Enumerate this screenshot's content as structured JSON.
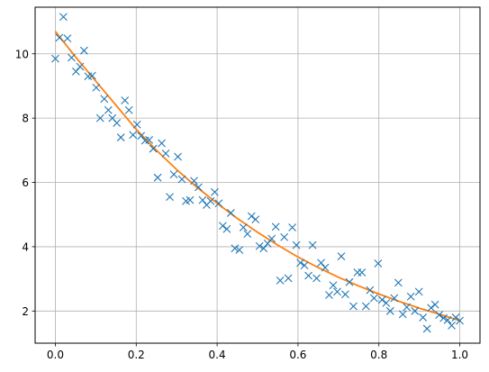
{
  "chart_data": {
    "type": "scatter",
    "xlim": [
      -0.05,
      1.05
    ],
    "ylim": [
      1.0,
      11.45
    ],
    "x_ticks": [
      0.0,
      0.2,
      0.4,
      0.6,
      0.8,
      1.0
    ],
    "x_tick_labels": [
      "0.0",
      "0.2",
      "0.4",
      "0.6",
      "0.8",
      "1.0"
    ],
    "y_ticks": [
      2,
      4,
      6,
      8,
      10
    ],
    "y_tick_labels": [
      "2",
      "4",
      "6",
      "8",
      "10"
    ],
    "grid": true,
    "legend": "none",
    "colors": {
      "scatter": "#1f77b4",
      "fit": "#ff7f0e",
      "grid": "#b0b0b0",
      "axes": "#000000"
    },
    "series": [
      {
        "kind": "scatter",
        "marker": "x",
        "points": [
          [
            0.0,
            9.85
          ],
          [
            0.01,
            10.5
          ],
          [
            0.02,
            11.15
          ],
          [
            0.03,
            10.48
          ],
          [
            0.04,
            9.88
          ],
          [
            0.051,
            9.45
          ],
          [
            0.061,
            9.6
          ],
          [
            0.071,
            10.1
          ],
          [
            0.081,
            9.3
          ],
          [
            0.091,
            9.32
          ],
          [
            0.101,
            8.95
          ],
          [
            0.111,
            8.0
          ],
          [
            0.121,
            8.6
          ],
          [
            0.131,
            8.25
          ],
          [
            0.141,
            8.0
          ],
          [
            0.152,
            7.85
          ],
          [
            0.162,
            7.4
          ],
          [
            0.172,
            8.55
          ],
          [
            0.182,
            8.25
          ],
          [
            0.192,
            7.48
          ],
          [
            0.202,
            7.8
          ],
          [
            0.212,
            7.45
          ],
          [
            0.222,
            7.3
          ],
          [
            0.232,
            7.32
          ],
          [
            0.242,
            7.05
          ],
          [
            0.253,
            6.15
          ],
          [
            0.263,
            7.22
          ],
          [
            0.273,
            6.9
          ],
          [
            0.283,
            5.55
          ],
          [
            0.293,
            6.25
          ],
          [
            0.303,
            6.8
          ],
          [
            0.313,
            6.1
          ],
          [
            0.323,
            5.42
          ],
          [
            0.333,
            5.45
          ],
          [
            0.343,
            6.05
          ],
          [
            0.354,
            5.85
          ],
          [
            0.364,
            5.45
          ],
          [
            0.374,
            5.3
          ],
          [
            0.384,
            5.42
          ],
          [
            0.394,
            5.7
          ],
          [
            0.404,
            5.35
          ],
          [
            0.414,
            4.65
          ],
          [
            0.424,
            4.55
          ],
          [
            0.434,
            5.05
          ],
          [
            0.444,
            3.95
          ],
          [
            0.455,
            3.9
          ],
          [
            0.465,
            4.6
          ],
          [
            0.475,
            4.4
          ],
          [
            0.485,
            4.95
          ],
          [
            0.495,
            4.85
          ],
          [
            0.505,
            4.02
          ],
          [
            0.515,
            3.95
          ],
          [
            0.525,
            4.1
          ],
          [
            0.535,
            4.25
          ],
          [
            0.545,
            4.62
          ],
          [
            0.556,
            2.95
          ],
          [
            0.566,
            4.3
          ],
          [
            0.576,
            3.02
          ],
          [
            0.586,
            4.6
          ],
          [
            0.596,
            4.05
          ],
          [
            0.606,
            3.5
          ],
          [
            0.616,
            3.42
          ],
          [
            0.626,
            3.1
          ],
          [
            0.636,
            4.05
          ],
          [
            0.646,
            3.02
          ],
          [
            0.657,
            3.5
          ],
          [
            0.667,
            3.35
          ],
          [
            0.677,
            2.5
          ],
          [
            0.687,
            2.8
          ],
          [
            0.697,
            2.6
          ],
          [
            0.707,
            3.7
          ],
          [
            0.717,
            2.52
          ],
          [
            0.727,
            2.9
          ],
          [
            0.737,
            2.15
          ],
          [
            0.747,
            3.2
          ],
          [
            0.758,
            3.2
          ],
          [
            0.768,
            2.15
          ],
          [
            0.778,
            2.65
          ],
          [
            0.788,
            2.4
          ],
          [
            0.798,
            3.48
          ],
          [
            0.808,
            2.35
          ],
          [
            0.818,
            2.25
          ],
          [
            0.828,
            2.0
          ],
          [
            0.838,
            2.4
          ],
          [
            0.848,
            2.88
          ],
          [
            0.859,
            1.9
          ],
          [
            0.869,
            2.12
          ],
          [
            0.879,
            2.45
          ],
          [
            0.889,
            2.0
          ],
          [
            0.899,
            2.6
          ],
          [
            0.909,
            1.8
          ],
          [
            0.919,
            1.45
          ],
          [
            0.929,
            2.1
          ],
          [
            0.939,
            2.2
          ],
          [
            0.949,
            1.88
          ],
          [
            0.96,
            1.78
          ],
          [
            0.97,
            1.72
          ],
          [
            0.98,
            1.55
          ],
          [
            0.99,
            1.8
          ],
          [
            1.0,
            1.7
          ]
        ]
      },
      {
        "kind": "line",
        "points": [
          [
            0.0,
            10.7
          ],
          [
            0.05,
            9.9
          ],
          [
            0.1,
            9.15
          ],
          [
            0.15,
            8.4
          ],
          [
            0.2,
            7.65
          ],
          [
            0.25,
            7.0
          ],
          [
            0.3,
            6.4
          ],
          [
            0.35,
            5.85
          ],
          [
            0.4,
            5.35
          ],
          [
            0.45,
            4.88
          ],
          [
            0.5,
            4.45
          ],
          [
            0.55,
            4.05
          ],
          [
            0.6,
            3.68
          ],
          [
            0.65,
            3.35
          ],
          [
            0.7,
            3.05
          ],
          [
            0.75,
            2.78
          ],
          [
            0.8,
            2.53
          ],
          [
            0.85,
            2.3
          ],
          [
            0.9,
            2.09
          ],
          [
            0.95,
            1.9
          ],
          [
            1.0,
            1.7
          ]
        ]
      }
    ]
  }
}
